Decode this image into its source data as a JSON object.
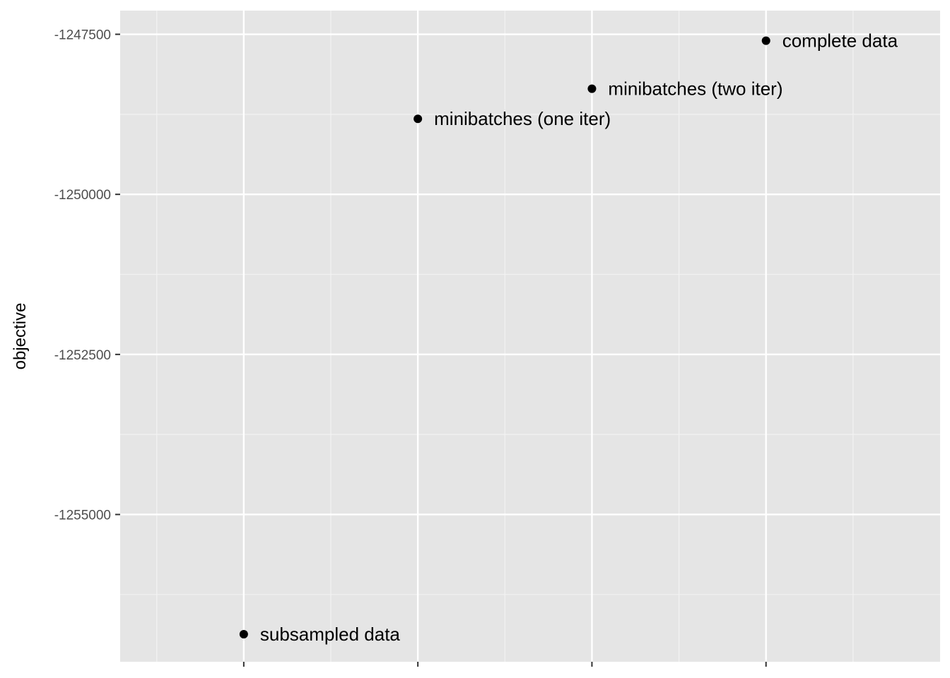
{
  "chart_data": {
    "type": "scatter",
    "title": "",
    "xlabel": "",
    "ylabel": "objective",
    "x_categories": [
      "subsampled data",
      "minibatches (one iter)",
      "minibatches (two iter)",
      "complete data"
    ],
    "xlim": [
      0.29,
      5.0
    ],
    "ylim": [
      -1257300,
      -1247130
    ],
    "yticks": [
      -1255000,
      -1252500,
      -1250000,
      -1247500
    ],
    "ytick_labels": [
      "-1255000",
      "-1252500",
      "-1250000",
      "-1247500"
    ],
    "points": [
      {
        "label": "subsampled data",
        "x": 1,
        "y": -1256870
      },
      {
        "label": "minibatches (one iter)",
        "x": 2,
        "y": -1248820
      },
      {
        "label": "minibatches (two iter)",
        "x": 3,
        "y": -1248350
      },
      {
        "label": "complete data",
        "x": 4,
        "y": -1247600
      }
    ],
    "grid": true,
    "legend": "none",
    "colors": {
      "panel_background": "#e5e5e5",
      "grid_major": "#ffffff",
      "grid_minor": "#f2f2f2",
      "point": "#000000",
      "tick_label": "#4d4d4d",
      "tick_mark": "#333333"
    }
  }
}
